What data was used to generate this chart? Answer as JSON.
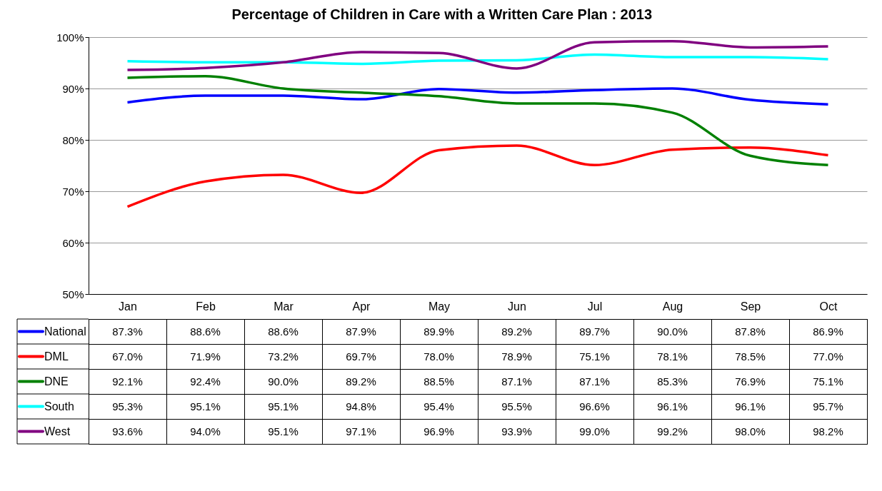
{
  "chart_data": {
    "type": "line",
    "title": "Percentage of Children in Care with a Written Care Plan : 2013",
    "categories": [
      "Jan",
      "Feb",
      "Mar",
      "Apr",
      "May",
      "Jun",
      "Jul",
      "Aug",
      "Sep",
      "Oct"
    ],
    "ylim": [
      50,
      100
    ],
    "yticks": [
      {
        "value": 50,
        "label": "50%"
      },
      {
        "value": 60,
        "label": "60%"
      },
      {
        "value": 70,
        "label": "70%"
      },
      {
        "value": 80,
        "label": "80%"
      },
      {
        "value": 90,
        "label": "90%"
      },
      {
        "value": 100,
        "label": "100%"
      }
    ],
    "grid": "y",
    "legend": "bottom",
    "marker": "none",
    "line_style": "solid",
    "series": [
      {
        "name": "National",
        "color": "#0000ff",
        "values": [
          87.3,
          88.6,
          88.6,
          87.9,
          89.9,
          89.2,
          89.7,
          90.0,
          87.8,
          86.9
        ],
        "value_labels": [
          "87.3%",
          "88.6%",
          "88.6%",
          "87.9%",
          "89.9%",
          "89.2%",
          "89.7%",
          "90.0%",
          "87.8%",
          "86.9%"
        ]
      },
      {
        "name": "DML",
        "color": "#ff0000",
        "values": [
          67.0,
          71.9,
          73.2,
          69.7,
          78.0,
          78.9,
          75.1,
          78.1,
          78.5,
          77.0
        ],
        "value_labels": [
          "67.0%",
          "71.9%",
          "73.2%",
          "69.7%",
          "78.0%",
          "78.9%",
          "75.1%",
          "78.1%",
          "78.5%",
          "77.0%"
        ]
      },
      {
        "name": "DNE",
        "color": "#008000",
        "values": [
          92.1,
          92.4,
          90.0,
          89.2,
          88.5,
          87.1,
          87.1,
          85.3,
          76.9,
          75.1
        ],
        "value_labels": [
          "92.1%",
          "92.4%",
          "90.0%",
          "89.2%",
          "88.5%",
          "87.1%",
          "87.1%",
          "85.3%",
          "76.9%",
          "75.1%"
        ]
      },
      {
        "name": "South",
        "color": "#00ffff",
        "values": [
          95.3,
          95.1,
          95.1,
          94.8,
          95.4,
          95.5,
          96.6,
          96.1,
          96.1,
          95.7
        ],
        "value_labels": [
          "95.3%",
          "95.1%",
          "95.1%",
          "94.8%",
          "95.4%",
          "95.5%",
          "96.6%",
          "96.1%",
          "96.1%",
          "95.7%"
        ]
      },
      {
        "name": "West",
        "color": "#800080",
        "values": [
          93.6,
          94.0,
          95.1,
          97.1,
          96.9,
          93.9,
          99.0,
          99.2,
          98.0,
          98.2
        ],
        "value_labels": [
          "93.6%",
          "94.0%",
          "95.1%",
          "97.1%",
          "96.9%",
          "93.9%",
          "99.0%",
          "99.2%",
          "98.0%",
          "98.2%"
        ]
      }
    ]
  }
}
